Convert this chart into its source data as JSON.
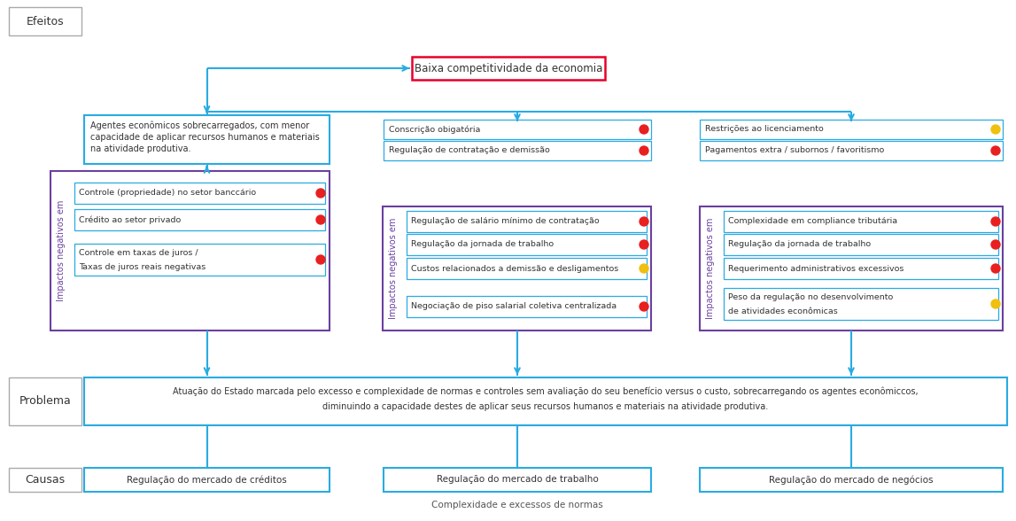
{
  "bg_color": "#ffffff",
  "cyan": "#29ABE2",
  "red_box": "#E8002A",
  "gray": "#AAAAAA",
  "purple": "#6B3FA0",
  "dark": "#333333",
  "label_efeitos": "Efeitos",
  "label_problema": "Problema",
  "label_causas": "Causas",
  "top_box_text": "Baixa competitividade da economia",
  "col1_effect_lines": [
    "Agentes econômicos sobrecarregados, com menor",
    "capacidade de aplicar recursos humanos e materiais",
    "na atividade produtiva."
  ],
  "col1_bracket_label": "Impactos negativos em",
  "col1_items": [
    {
      "text": [
        "Controle (propriedade) no setor banccário"
      ],
      "dot": "red"
    },
    {
      "text": [
        "Crédito ao setor privado"
      ],
      "dot": "red"
    },
    {
      "text": [
        "Controle em taxas de juros /",
        "Taxas de juros reais negativas"
      ],
      "dot": "red"
    }
  ],
  "col1_cause": "Regulação do mercado de créditos",
  "col2_bracket_label": "Impactos negativos em",
  "col2_above": [
    {
      "text": [
        "Conscrição obigatória"
      ],
      "dot": "red"
    },
    {
      "text": [
        "Regulação de contratação e demissão"
      ],
      "dot": "red"
    }
  ],
  "col2_inside": [
    {
      "text": [
        "Regulação de salário mínimo de contratação"
      ],
      "dot": "red"
    },
    {
      "text": [
        "Regulação da jornada de trabalho"
      ],
      "dot": "red"
    },
    {
      "text": [
        "Custos relacionados a demissão e desligamentos"
      ],
      "dot": "yellow"
    },
    {
      "text": [
        "Negociação de piso salarial coletiva centralizada"
      ],
      "dot": "red"
    }
  ],
  "col2_cause": "Regulação do mercado de trabalho",
  "col3_bracket_label": "Impactos negativos em",
  "col3_above": [
    {
      "text": [
        "Restrições ao licenciamento"
      ],
      "dot": "yellow"
    },
    {
      "text": [
        "Pagamentos extra / subornos / favoritismo"
      ],
      "dot": "red"
    }
  ],
  "col3_inside": [
    {
      "text": [
        "Complexidade em compliance tributária"
      ],
      "dot": "red"
    },
    {
      "text": [
        "Regulação da jornada de trabalho"
      ],
      "dot": "red"
    },
    {
      "text": [
        "Requerimento administrativos excessivos"
      ],
      "dot": "red"
    },
    {
      "text": [
        "Peso da regulação no desenvolvimento",
        "de atividades econômicas"
      ],
      "dot": "yellow"
    }
  ],
  "col3_cause": "Regulação do mercado de negócios",
  "problema_line1": "Atuação do Estado marcada pelo excesso e complexidade de normas e controles sem avaliação do seu benefício versus o custo, sobrecarregando os agentes econômiccos,",
  "problema_line2": "diminuindo a capacidade destes de aplicar seus recursos humanos e materiais na atividade produtiva.",
  "bottom_note": "Complexidade e excessos de normas"
}
